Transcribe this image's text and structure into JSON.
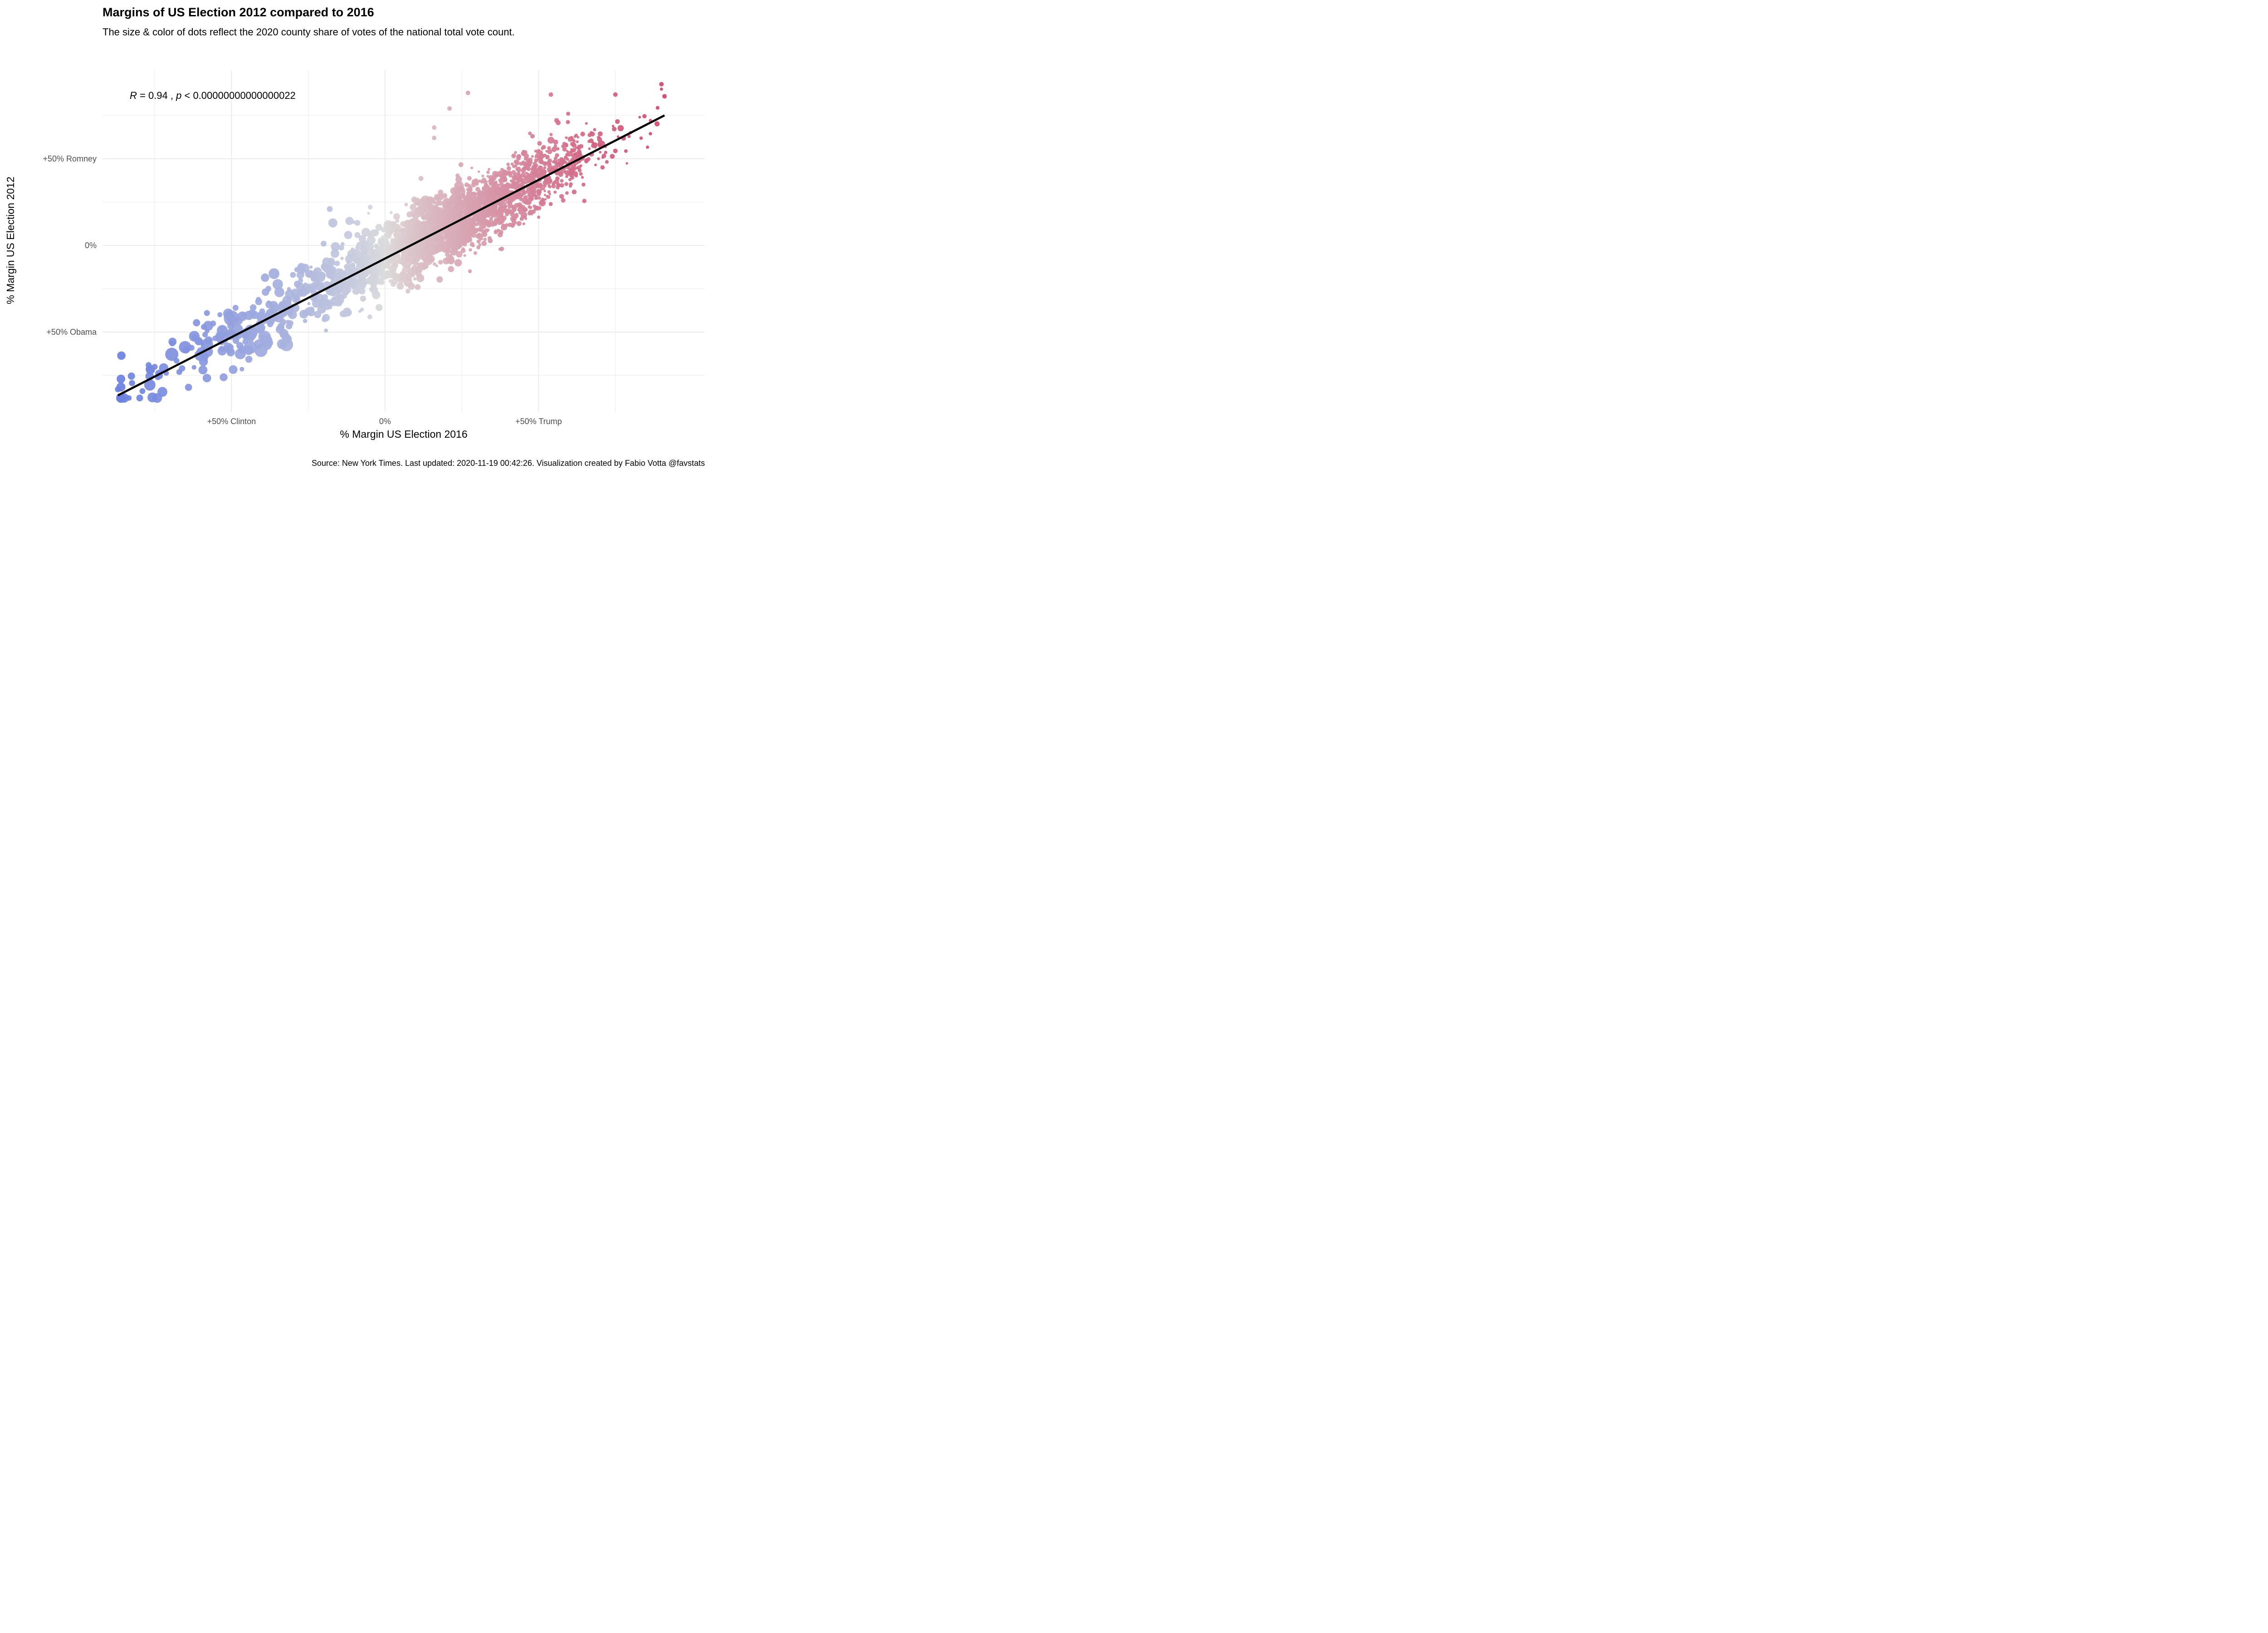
{
  "chart_data": {
    "type": "scatter",
    "title": "Margins of US Election 2012 compared  to 2016",
    "subtitle": "The size & color of dots reflect the 2020 county share of votes of the national total vote count.",
    "caption": "Source: New York Times. Last updated: 2020-11-19 00:42:26. Visualization created by Fabio Votta @favstats",
    "xlabel": "% Margin US Election 2016",
    "ylabel": "% Margin US Election 2012",
    "xlim": [
      -92,
      104
    ],
    "ylim": [
      -96,
      101
    ],
    "x_ticks": [
      {
        "value": -50,
        "label": "+50% Clinton"
      },
      {
        "value": 0,
        "label": "0%"
      },
      {
        "value": 50,
        "label": "+50% Trump"
      }
    ],
    "y_ticks": [
      {
        "value": 50,
        "label": "+50% Romney"
      },
      {
        "value": 0,
        "label": "0%"
      },
      {
        "value": -50,
        "label": "+50% Obama"
      }
    ],
    "grid": true,
    "annotation": {
      "r_label": "R",
      "r_text": " = 0.94 , ",
      "p_label": "p",
      "p_text": " < 0.00000000000000022"
    },
    "fit_line": {
      "x": [
        -87,
        91
      ],
      "y": [
        -86.5,
        75
      ]
    },
    "colors": {
      "dem": "#6a7fdf",
      "mid": "#dcdcdc",
      "rep": "#d1436a",
      "fit": "#000000",
      "grid": "#ebebeb"
    },
    "highlight_points": [
      {
        "x": -87,
        "y": -83
      },
      {
        "x": -79,
        "y": -84
      },
      {
        "x": -77,
        "y": -69
      },
      {
        "x": -75,
        "y": -70
      },
      {
        "x": -74,
        "y": -76
      },
      {
        "x": -67,
        "y": -73
      },
      {
        "x": -63,
        "y": -59
      },
      {
        "x": -62,
        "y": -53
      },
      {
        "x": -59,
        "y": -47
      },
      {
        "x": -58,
        "y": -39
      },
      {
        "x": -56,
        "y": -45
      },
      {
        "x": -53,
        "y": -48
      },
      {
        "x": -50,
        "y": -42
      },
      {
        "x": -49,
        "y": -43
      },
      {
        "x": -46,
        "y": -40
      },
      {
        "x": -40,
        "y": -38
      },
      {
        "x": -38,
        "y": -25
      },
      {
        "x": -30,
        "y": -17
      },
      {
        "x": -20,
        "y": 1
      },
      {
        "x": -9,
        "y": 6
      },
      {
        "x": -9,
        "y": 13
      },
      {
        "x": -18,
        "y": 21
      },
      {
        "x": 2,
        "y": 8
      },
      {
        "x": 21,
        "y": 79
      },
      {
        "x": 27,
        "y": 88
      },
      {
        "x": 16,
        "y": 68
      },
      {
        "x": 16,
        "y": 62
      },
      {
        "x": 48,
        "y": 63
      },
      {
        "x": 54,
        "y": 87
      },
      {
        "x": 75,
        "y": 87
      },
      {
        "x": 90,
        "y": 93
      },
      {
        "x": 91,
        "y": 86
      },
      {
        "x": 38,
        "y": -2
      },
      {
        "x": 58,
        "y": 26
      }
    ],
    "cluster_n": 2600
  }
}
